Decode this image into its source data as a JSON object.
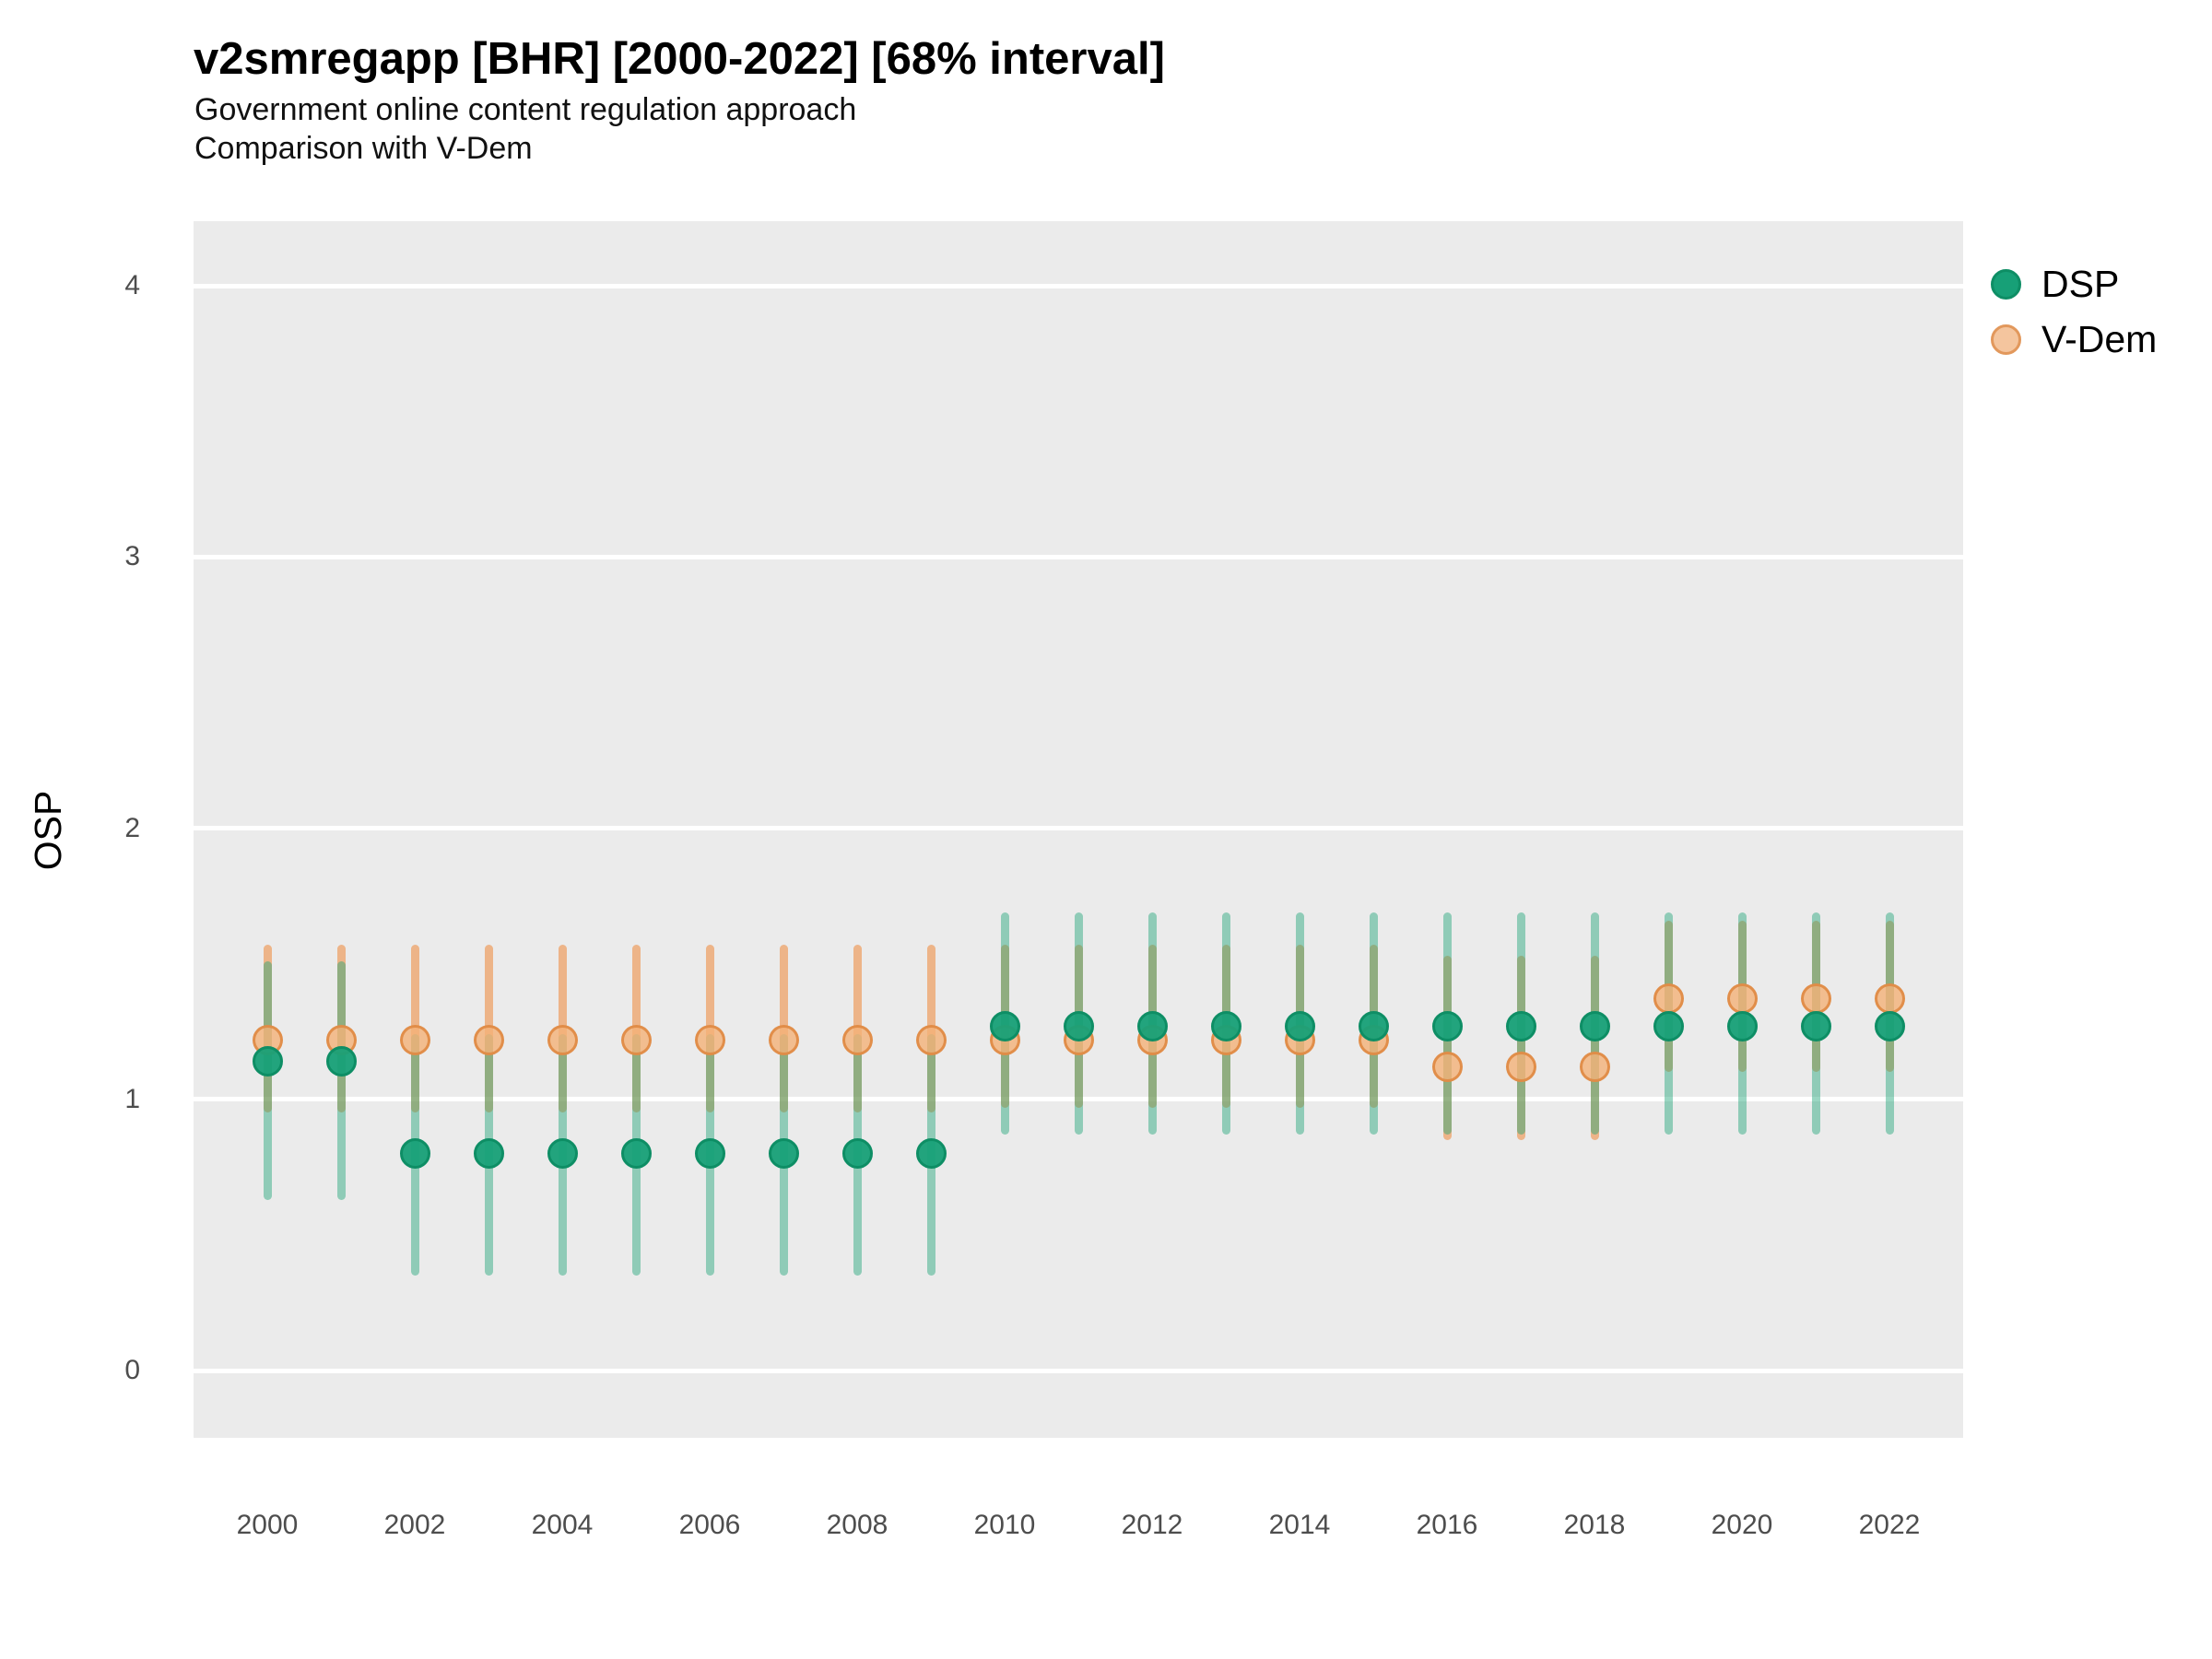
{
  "chart_data": {
    "type": "scatter",
    "title": "v2smregapp [BHR] [2000-2022] [68% interval]",
    "subtitle": "Government online content regulation approach",
    "subtitle2": "Comparison with V-Dem",
    "xlabel": "",
    "ylabel": "OSP",
    "ylim": [
      -0.25,
      4.24
    ],
    "xlim": [
      1999,
      2023
    ],
    "yticks": [
      0,
      1,
      2,
      3,
      4
    ],
    "xticks": [
      2000,
      2002,
      2004,
      2006,
      2008,
      2010,
      2012,
      2014,
      2016,
      2018,
      2020,
      2022
    ],
    "grid": "horizontal-major-only",
    "legend_position": "right-top",
    "interval_label": "68% interval",
    "colors": {
      "panel_background": "#EBEBEB",
      "gridline": "#FFFFFF",
      "dsp_point": "#17A077",
      "dsp_point_stroke": "#0E8E65",
      "dsp_interval": "rgba(32,163,120,0.45)",
      "vdem_point": "#F4C59E",
      "vdem_point_stroke": "#E2985C",
      "vdem_interval": "rgba(240,112,16,0.45)",
      "tick_text": "#4D4D4D"
    },
    "series": [
      {
        "name": "DSP",
        "points": [
          {
            "year": 2000,
            "value": 1.14,
            "lo": 0.63,
            "hi": 1.51
          },
          {
            "year": 2001,
            "value": 1.14,
            "lo": 0.63,
            "hi": 1.51
          },
          {
            "year": 2002,
            "value": 0.8,
            "lo": 0.35,
            "hi": 1.24
          },
          {
            "year": 2003,
            "value": 0.8,
            "lo": 0.35,
            "hi": 1.24
          },
          {
            "year": 2004,
            "value": 0.8,
            "lo": 0.35,
            "hi": 1.24
          },
          {
            "year": 2005,
            "value": 0.8,
            "lo": 0.35,
            "hi": 1.24
          },
          {
            "year": 2006,
            "value": 0.8,
            "lo": 0.35,
            "hi": 1.24
          },
          {
            "year": 2007,
            "value": 0.8,
            "lo": 0.35,
            "hi": 1.24
          },
          {
            "year": 2008,
            "value": 0.8,
            "lo": 0.35,
            "hi": 1.24
          },
          {
            "year": 2009,
            "value": 0.8,
            "lo": 0.35,
            "hi": 1.24
          },
          {
            "year": 2010,
            "value": 1.27,
            "lo": 0.87,
            "hi": 1.69
          },
          {
            "year": 2011,
            "value": 1.27,
            "lo": 0.87,
            "hi": 1.69
          },
          {
            "year": 2012,
            "value": 1.27,
            "lo": 0.87,
            "hi": 1.69
          },
          {
            "year": 2013,
            "value": 1.27,
            "lo": 0.87,
            "hi": 1.69
          },
          {
            "year": 2014,
            "value": 1.27,
            "lo": 0.87,
            "hi": 1.69
          },
          {
            "year": 2015,
            "value": 1.27,
            "lo": 0.87,
            "hi": 1.69
          },
          {
            "year": 2016,
            "value": 1.27,
            "lo": 0.87,
            "hi": 1.69
          },
          {
            "year": 2017,
            "value": 1.27,
            "lo": 0.87,
            "hi": 1.69
          },
          {
            "year": 2018,
            "value": 1.27,
            "lo": 0.87,
            "hi": 1.69
          },
          {
            "year": 2019,
            "value": 1.27,
            "lo": 0.87,
            "hi": 1.69
          },
          {
            "year": 2020,
            "value": 1.27,
            "lo": 0.87,
            "hi": 1.69
          },
          {
            "year": 2021,
            "value": 1.27,
            "lo": 0.87,
            "hi": 1.69
          },
          {
            "year": 2022,
            "value": 1.27,
            "lo": 0.87,
            "hi": 1.69
          }
        ]
      },
      {
        "name": "V-Dem",
        "points": [
          {
            "year": 2000,
            "value": 1.22,
            "lo": 0.95,
            "hi": 1.57
          },
          {
            "year": 2001,
            "value": 1.22,
            "lo": 0.95,
            "hi": 1.57
          },
          {
            "year": 2002,
            "value": 1.22,
            "lo": 0.95,
            "hi": 1.57
          },
          {
            "year": 2003,
            "value": 1.22,
            "lo": 0.95,
            "hi": 1.57
          },
          {
            "year": 2004,
            "value": 1.22,
            "lo": 0.95,
            "hi": 1.57
          },
          {
            "year": 2005,
            "value": 1.22,
            "lo": 0.95,
            "hi": 1.57
          },
          {
            "year": 2006,
            "value": 1.22,
            "lo": 0.95,
            "hi": 1.57
          },
          {
            "year": 2007,
            "value": 1.22,
            "lo": 0.95,
            "hi": 1.57
          },
          {
            "year": 2008,
            "value": 1.22,
            "lo": 0.95,
            "hi": 1.57
          },
          {
            "year": 2009,
            "value": 1.22,
            "lo": 0.95,
            "hi": 1.57
          },
          {
            "year": 2010,
            "value": 1.22,
            "lo": 0.97,
            "hi": 1.57
          },
          {
            "year": 2011,
            "value": 1.22,
            "lo": 0.97,
            "hi": 1.57
          },
          {
            "year": 2012,
            "value": 1.22,
            "lo": 0.97,
            "hi": 1.57
          },
          {
            "year": 2013,
            "value": 1.22,
            "lo": 0.97,
            "hi": 1.57
          },
          {
            "year": 2014,
            "value": 1.22,
            "lo": 0.97,
            "hi": 1.57
          },
          {
            "year": 2015,
            "value": 1.22,
            "lo": 0.97,
            "hi": 1.57
          },
          {
            "year": 2016,
            "value": 1.12,
            "lo": 0.85,
            "hi": 1.53
          },
          {
            "year": 2017,
            "value": 1.12,
            "lo": 0.85,
            "hi": 1.53
          },
          {
            "year": 2018,
            "value": 1.12,
            "lo": 0.85,
            "hi": 1.53
          },
          {
            "year": 2019,
            "value": 1.37,
            "lo": 1.1,
            "hi": 1.66
          },
          {
            "year": 2020,
            "value": 1.37,
            "lo": 1.1,
            "hi": 1.66
          },
          {
            "year": 2021,
            "value": 1.37,
            "lo": 1.1,
            "hi": 1.66
          },
          {
            "year": 2022,
            "value": 1.37,
            "lo": 1.1,
            "hi": 1.66
          }
        ]
      }
    ]
  }
}
